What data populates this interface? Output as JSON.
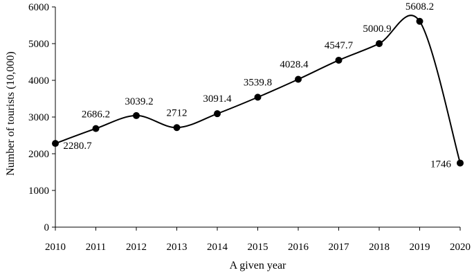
{
  "chart_data": {
    "type": "line",
    "title": "",
    "xlabel": "A given year",
    "ylabel": "Number of tourists (10,000)",
    "categories": [
      "2010",
      "2011",
      "2012",
      "2013",
      "2014",
      "2015",
      "2016",
      "2017",
      "2018",
      "2019",
      "2020"
    ],
    "series": [
      {
        "values": [
          2280.7,
          2686.2,
          3039.2,
          2712,
          3091.4,
          3539.8,
          4028.4,
          4547.7,
          5000.9,
          5608.2,
          1746
        ],
        "value_labels": [
          "2280.7",
          "2686.2",
          "3039.2",
          "2712",
          "3091.4",
          "3539.8",
          "4028.4",
          "4547.7",
          "5000.9",
          "5608.2",
          "1746"
        ],
        "color": "#000000",
        "smooth": true
      }
    ],
    "ylim": [
      0,
      6000
    ],
    "yticks": [
      "0",
      "1000",
      "2000",
      "3000",
      "4000",
      "5000",
      "6000"
    ],
    "grid": false,
    "legend": "none"
  }
}
